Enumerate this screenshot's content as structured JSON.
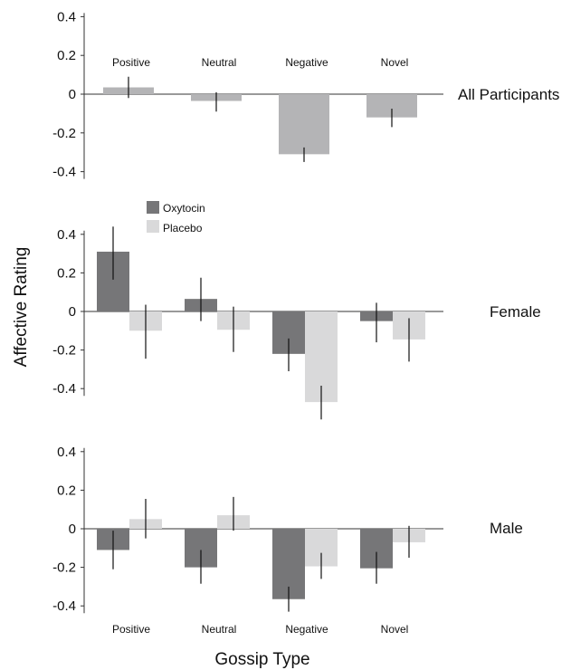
{
  "colors": {
    "all": "#b4b4b6",
    "oxytocin": "#767678",
    "placebo": "#d9d9da",
    "axis": "#333333",
    "error_bar": "#111111"
  },
  "axis_titles": {
    "y": "Affective Rating",
    "x": "Gossip Type"
  },
  "legend": {
    "oxytocin": "Oxytocin",
    "placebo": "Placebo"
  },
  "chart_data": [
    {
      "type": "bar",
      "panel_label": "All Participants",
      "categories": [
        "Positive",
        "Neutral",
        "Negative",
        "Novel"
      ],
      "ylim": [
        -0.4,
        0.4
      ],
      "yticks": [
        "0.4",
        "0.2",
        "0",
        "-0.2",
        "-0.4"
      ],
      "series": [
        {
          "name": "",
          "values": [
            0.035,
            -0.035,
            -0.31,
            -0.12
          ],
          "error_low": [
            -0.02,
            -0.09,
            -0.35,
            -0.17
          ],
          "error_high": [
            0.09,
            0.01,
            -0.275,
            -0.075
          ]
        }
      ]
    },
    {
      "type": "bar",
      "panel_label": "Female",
      "categories": [
        "Positive",
        "Neutral",
        "Negative",
        "Novel"
      ],
      "ylim": [
        -0.4,
        0.4
      ],
      "yticks": [
        "0.4",
        "0.2",
        "0",
        "-0.2",
        "-0.4"
      ],
      "series": [
        {
          "name": "Oxytocin",
          "values": [
            0.31,
            0.065,
            -0.22,
            -0.05
          ],
          "error_low": [
            0.165,
            -0.05,
            -0.31,
            -0.16
          ],
          "error_high": [
            0.44,
            0.175,
            -0.14,
            0.045
          ]
        },
        {
          "name": "Placebo",
          "values": [
            -0.1,
            -0.095,
            -0.47,
            -0.145
          ],
          "error_low": [
            -0.245,
            -0.21,
            -0.56,
            -0.26
          ],
          "error_high": [
            0.035,
            0.025,
            -0.385,
            -0.035
          ]
        }
      ]
    },
    {
      "type": "bar",
      "panel_label": "Male",
      "categories": [
        "Positive",
        "Neutral",
        "Negative",
        "Novel"
      ],
      "ylim": [
        -0.4,
        0.4
      ],
      "yticks": [
        "0.4",
        "0.2",
        "0",
        "-0.2",
        "-0.4"
      ],
      "series": [
        {
          "name": "Oxytocin",
          "values": [
            -0.11,
            -0.2,
            -0.365,
            -0.205
          ],
          "error_low": [
            -0.21,
            -0.285,
            -0.43,
            -0.285
          ],
          "error_high": [
            -0.01,
            -0.11,
            -0.3,
            -0.12
          ]
        },
        {
          "name": "Placebo",
          "values": [
            0.05,
            0.07,
            -0.195,
            -0.07
          ],
          "error_low": [
            -0.05,
            -0.01,
            -0.26,
            -0.15
          ],
          "error_high": [
            0.155,
            0.165,
            -0.125,
            0.015
          ]
        }
      ]
    }
  ]
}
